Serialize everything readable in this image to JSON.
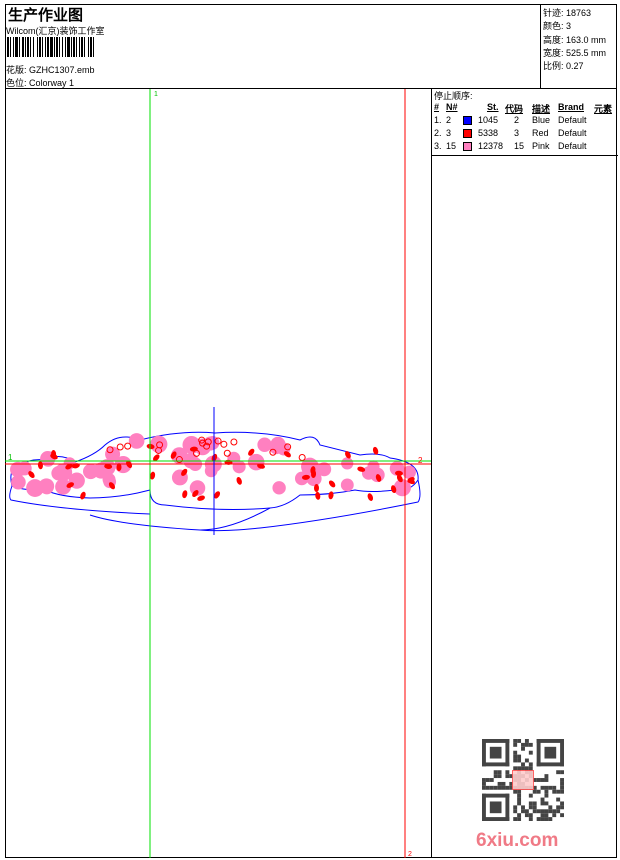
{
  "header": {
    "title": "生产作业图",
    "studio": "Wilcom(汇京)装饰工作室",
    "pattern_label": "花版:",
    "pattern_value": "GZHC1307.emb",
    "colorway_label": "色位:",
    "colorway_value": "Colorway 1"
  },
  "info": {
    "stitches": "针迹: 18763",
    "colors": "颜色: 3",
    "height": "高度: 163.0 mm",
    "width": "宽度: 525.5 mm",
    "scale": "比例: 0.27"
  },
  "stop_sequence": {
    "title": "停止顺序:",
    "columns": [
      "#",
      "N#",
      "St.",
      "代码",
      "描述",
      "Brand",
      "元素"
    ],
    "rows": [
      {
        "idx": "1.",
        "n": "2",
        "color": "#0000ff",
        "st": "1045",
        "code": "2",
        "desc": "Blue",
        "brand": "Default"
      },
      {
        "idx": "2.",
        "n": "3",
        "color": "#ff0000",
        "st": "5338",
        "code": "3",
        "desc": "Red",
        "brand": "Default"
      },
      {
        "idx": "3.",
        "n": "15",
        "color": "#ff80c0",
        "st": "12378",
        "code": "15",
        "desc": "Pink",
        "brand": "Default"
      }
    ]
  },
  "canvas": {
    "marker_top": "1",
    "marker_left": "1",
    "marker_right": "2",
    "marker_bottom": "2"
  },
  "watermark": {
    "logo": "6xiu.com",
    "stamp": "以图版"
  },
  "colors": {
    "guide_green": "#00e000",
    "guide_red": "#ff0000",
    "outline_blue": "#0000ff",
    "pink": "#ff80c0"
  }
}
